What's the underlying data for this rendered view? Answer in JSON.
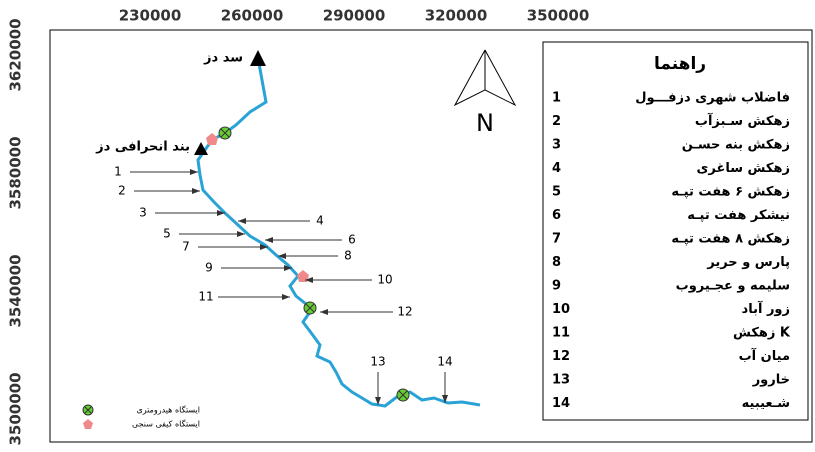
{
  "axes": {
    "x_ticks": [
      230000,
      260000,
      290000,
      320000,
      350000
    ],
    "y_ticks": [
      3620000,
      3580000,
      3540000,
      3500000
    ]
  },
  "map": {
    "dam": "سد دز",
    "diversion_dam": "بند انحرافی دز",
    "north": "N",
    "points": [
      "1",
      "2",
      "3",
      "4",
      "5",
      "6",
      "7",
      "8",
      "9",
      "10",
      "11",
      "12",
      "13",
      "14"
    ],
    "station_legend": [
      "ایستگاه هیدرومتری",
      "ایستگاه کیفی سنجی"
    ]
  },
  "legend": {
    "title": "راهنما",
    "items": [
      {
        "number": "1",
        "name": "فاضلاب شهری دزفـــول"
      },
      {
        "number": "2",
        "name": "زهکش سـبزآب"
      },
      {
        "number": "3",
        "name": "زهکش بنه حسـن"
      },
      {
        "number": "4",
        "name": "زهکش ساغری"
      },
      {
        "number": "5",
        "name": "زهکش ۶ هفت تپـه"
      },
      {
        "number": "6",
        "name": "نیشکر هفت تپـه"
      },
      {
        "number": "7",
        "name": "زهکش ۸ هفت تپـه"
      },
      {
        "number": "8",
        "name": "پارس و حریر"
      },
      {
        "number": "9",
        "name": "سلیمه و عجـیروب"
      },
      {
        "number": "10",
        "name": "زور آباد"
      },
      {
        "number": "11",
        "name": "زهکش K"
      },
      {
        "number": "12",
        "name": "میان آب"
      },
      {
        "number": "13",
        "name": "خارور"
      },
      {
        "number": "14",
        "name": "شـعیبیه"
      }
    ]
  }
}
